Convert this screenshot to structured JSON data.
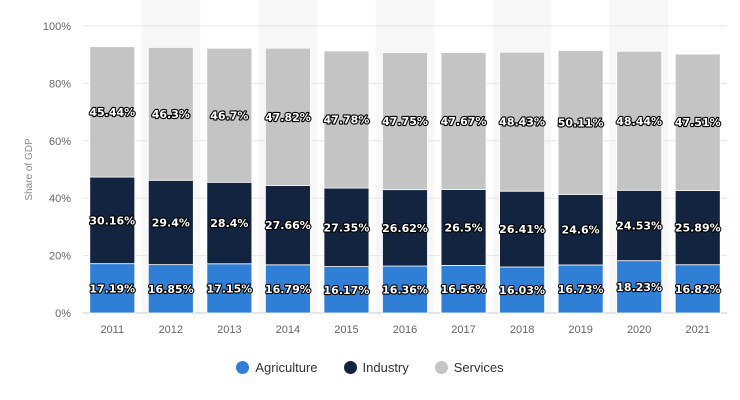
{
  "chart_data": {
    "type": "bar",
    "stacked": true,
    "categories": [
      "2011",
      "2012",
      "2013",
      "2014",
      "2015",
      "2016",
      "2017",
      "2018",
      "2019",
      "2020",
      "2021"
    ],
    "ylabel": "Share of GDP",
    "ylim": [
      0,
      100
    ],
    "y_ticks": [
      "0%",
      "20%",
      "40%",
      "60%",
      "80%",
      "100%"
    ],
    "grid": true,
    "legend_position": "bottom",
    "series": [
      {
        "name": "Agriculture",
        "color": "#2f7fd7",
        "values": [
          17.19,
          16.85,
          17.15,
          16.79,
          16.17,
          16.36,
          16.56,
          16.03,
          16.73,
          18.23,
          16.82
        ],
        "labels": [
          "17.19%",
          "16.85%",
          "17.15%",
          "16.79%",
          "16.17%",
          "16.36%",
          "16.56%",
          "16.03%",
          "16.73%",
          "18.23%",
          "16.82%"
        ]
      },
      {
        "name": "Industry",
        "color": "#12243f",
        "values": [
          30.16,
          29.4,
          28.4,
          27.66,
          27.35,
          26.62,
          26.5,
          26.41,
          24.6,
          24.53,
          25.89
        ],
        "labels": [
          "30.16%",
          "29.4%",
          "28.4%",
          "27.66%",
          "27.35%",
          "26.62%",
          "26.5%",
          "26.41%",
          "24.6%",
          "24.53%",
          "25.89%"
        ]
      },
      {
        "name": "Services",
        "color": "#c4c4c4",
        "values": [
          45.44,
          46.3,
          46.7,
          47.82,
          47.78,
          47.75,
          47.67,
          48.43,
          50.11,
          48.44,
          47.51
        ],
        "labels": [
          "45.44%",
          "46.3%",
          "46.7%",
          "47.82%",
          "47.78%",
          "47.75%",
          "47.67%",
          "48.43%",
          "50.11%",
          "48.44%",
          "47.51%"
        ]
      }
    ]
  }
}
